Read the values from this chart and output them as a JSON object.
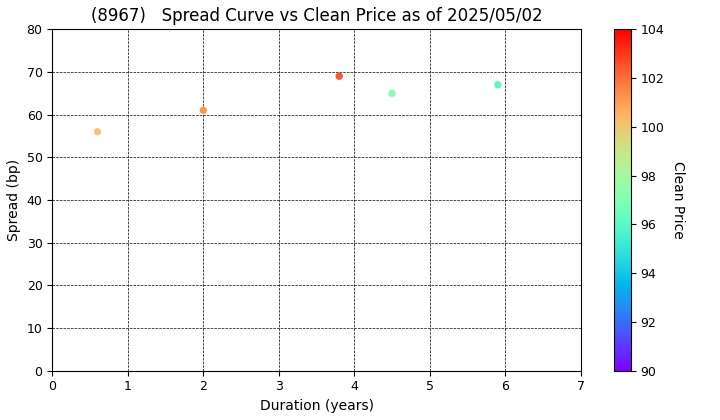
{
  "title": "(8967)   Spread Curve vs Clean Price as of 2025/05/02",
  "xlabel": "Duration (years)",
  "ylabel": "Spread (bp)",
  "colorbar_label": "Clean Price",
  "xlim": [
    0,
    7
  ],
  "ylim": [
    0,
    80
  ],
  "xticks": [
    0,
    1,
    2,
    3,
    4,
    5,
    6,
    7
  ],
  "yticks": [
    0,
    10,
    20,
    30,
    40,
    50,
    60,
    70,
    80
  ],
  "colorbar_min": 90,
  "colorbar_max": 104,
  "colorbar_ticks": [
    90,
    92,
    94,
    96,
    98,
    100,
    102,
    104
  ],
  "points": [
    {
      "duration": 0.6,
      "spread": 56,
      "price": 100.0
    },
    {
      "duration": 2.0,
      "spread": 61,
      "price": 101.2
    },
    {
      "duration": 3.8,
      "spread": 69,
      "price": 102.5
    },
    {
      "duration": 4.5,
      "spread": 65,
      "price": 97.0
    },
    {
      "duration": 5.9,
      "spread": 67,
      "price": 96.0
    }
  ],
  "marker_size": 18,
  "cmap": "rainbow",
  "background_color": "#ffffff",
  "grid_color": "#000000",
  "grid_linestyle": "--",
  "grid_linewidth": 0.5,
  "title_fontsize": 12,
  "axis_label_fontsize": 10,
  "tick_fontsize": 9
}
